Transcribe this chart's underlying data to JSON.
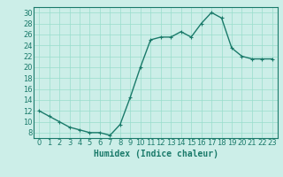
{
  "x": [
    0,
    1,
    2,
    3,
    4,
    5,
    6,
    7,
    8,
    9,
    10,
    11,
    12,
    13,
    14,
    15,
    16,
    17,
    18,
    19,
    20,
    21,
    22,
    23
  ],
  "y": [
    12,
    11,
    10,
    9,
    8.5,
    8,
    8,
    7.5,
    9.5,
    14.5,
    20,
    25,
    25.5,
    25.5,
    26.5,
    25.5,
    28,
    30,
    29,
    23.5,
    22,
    21.5,
    21.5,
    21.5
  ],
  "line_color": "#1a7a6a",
  "marker": "+",
  "marker_size": 3,
  "background_color": "#cceee8",
  "grid_color": "#99ddcc",
  "xlabel": "Humidex (Indice chaleur)",
  "ylim": [
    7,
    31
  ],
  "xlim": [
    -0.5,
    23.5
  ],
  "yticks": [
    8,
    10,
    12,
    14,
    16,
    18,
    20,
    22,
    24,
    26,
    28,
    30
  ],
  "xtick_labels": [
    "0",
    "1",
    "2",
    "3",
    "4",
    "5",
    "6",
    "7",
    "8",
    "9",
    "10",
    "11",
    "12",
    "13",
    "14",
    "15",
    "16",
    "17",
    "18",
    "19",
    "20",
    "21",
    "22",
    "23"
  ],
  "xlabel_fontsize": 7,
  "tick_fontsize": 6,
  "line_width": 1.0
}
